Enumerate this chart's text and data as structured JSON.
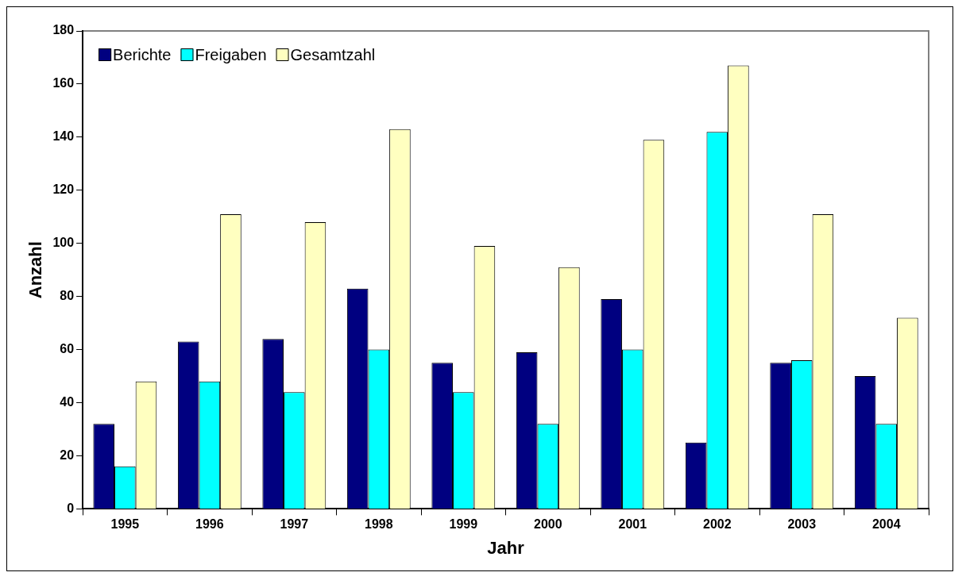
{
  "chart_data": {
    "type": "bar",
    "xlabel": "Jahr",
    "ylabel": "Anzahl",
    "categories": [
      "1995",
      "1996",
      "1997",
      "1998",
      "1999",
      "2000",
      "2001",
      "2002",
      "2003",
      "2004"
    ],
    "series": [
      {
        "name": "Berichte",
        "color": "#000080",
        "values": [
          32,
          63,
          64,
          83,
          55,
          59,
          79,
          25,
          55,
          50
        ]
      },
      {
        "name": "Freigaben",
        "color": "#00ffff",
        "values": [
          16,
          48,
          44,
          60,
          44,
          32,
          60,
          142,
          56,
          32
        ]
      },
      {
        "name": "Gesamtzahl",
        "color": "#ffffc0",
        "values": [
          48,
          111,
          108,
          143,
          99,
          91,
          139,
          167,
          111,
          72
        ]
      }
    ],
    "ylim": [
      0,
      180
    ],
    "yticks": [
      0,
      20,
      40,
      60,
      80,
      100,
      120,
      140,
      160,
      180
    ],
    "grid": false,
    "legend": "top left"
  }
}
